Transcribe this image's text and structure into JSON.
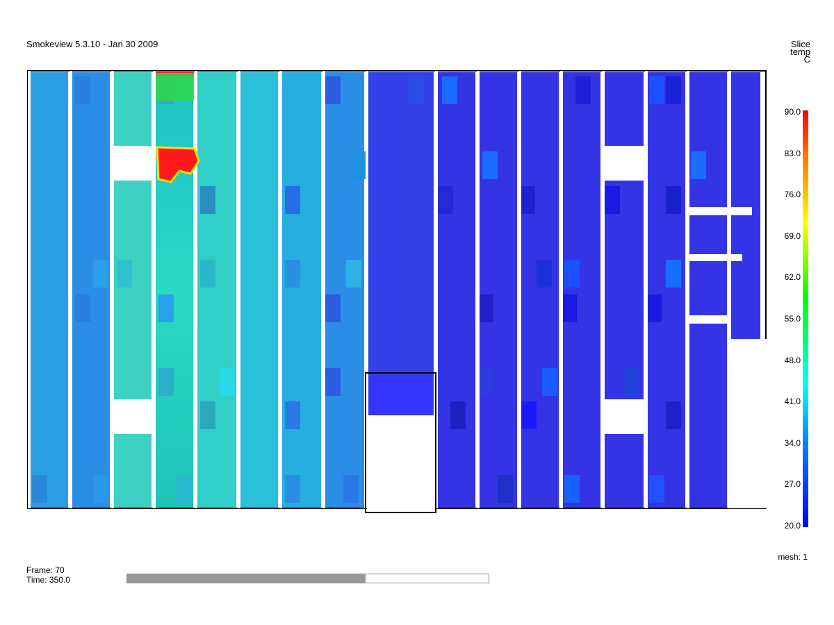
{
  "app": {
    "title": "Smokeview 5.3.10 - Jan 30 2009"
  },
  "colorbar": {
    "title_line1": "Slice",
    "title_line2": "temp",
    "title_line3": "C",
    "labels": [
      "90.0",
      "83.0",
      "76.0",
      "69.0",
      "62.0",
      "55.0",
      "48.0",
      "41.0",
      "34.0",
      "27.0",
      "20.0"
    ],
    "colors": {
      "high": "#ff0000",
      "mid": "#00ff00",
      "low": "#0000ff"
    }
  },
  "status": {
    "mesh": "mesh: 1",
    "frame": "Frame: 70",
    "time": "Time: 350.0"
  },
  "timebar": {
    "progress_fraction": 0.66
  }
}
